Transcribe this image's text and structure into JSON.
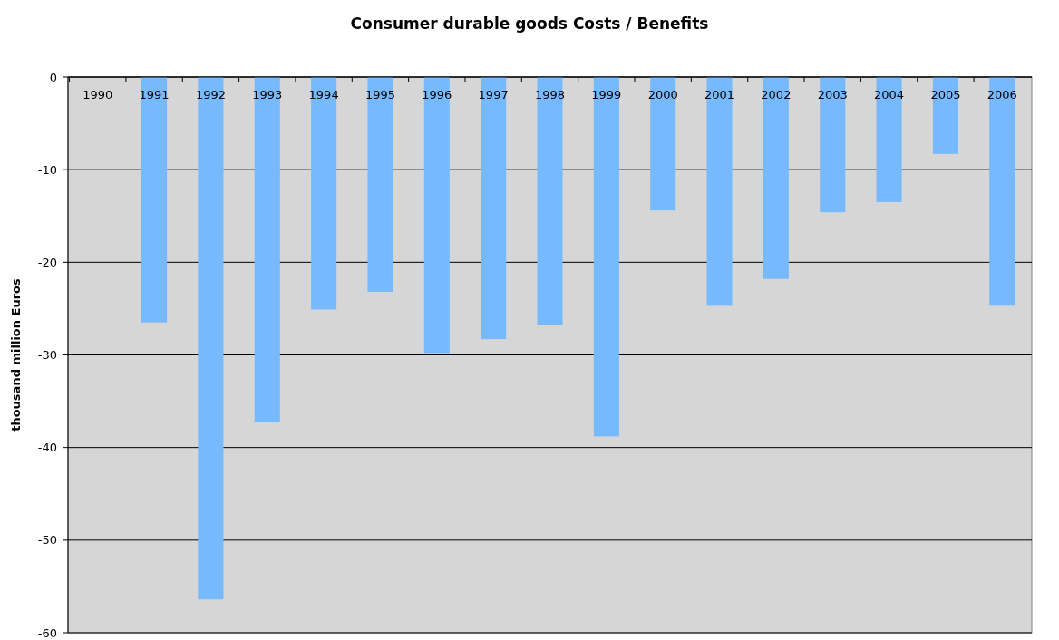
{
  "chart_data": {
    "type": "bar",
    "title": "Consumer durable goods Costs / Benefits",
    "ylabel": "thousand million Euros",
    "categories": [
      "1990",
      "1991",
      "1992",
      "1993",
      "1994",
      "1995",
      "1996",
      "1997",
      "1998",
      "1999",
      "2000",
      "2001",
      "2002",
      "2003",
      "2004",
      "2005",
      "2006"
    ],
    "values": [
      null,
      -26.5,
      -56.4,
      -37.2,
      -25.1,
      -23.2,
      -29.8,
      -28.3,
      -26.8,
      -38.8,
      -14.4,
      -24.7,
      -21.8,
      -14.6,
      -13.5,
      -8.3,
      -24.7
    ],
    "color": "#76b9fd",
    "ylim": [
      -60,
      0
    ],
    "yticks": [
      -60,
      -50,
      -40,
      -30,
      -20,
      -10,
      0
    ],
    "grid": "y"
  }
}
